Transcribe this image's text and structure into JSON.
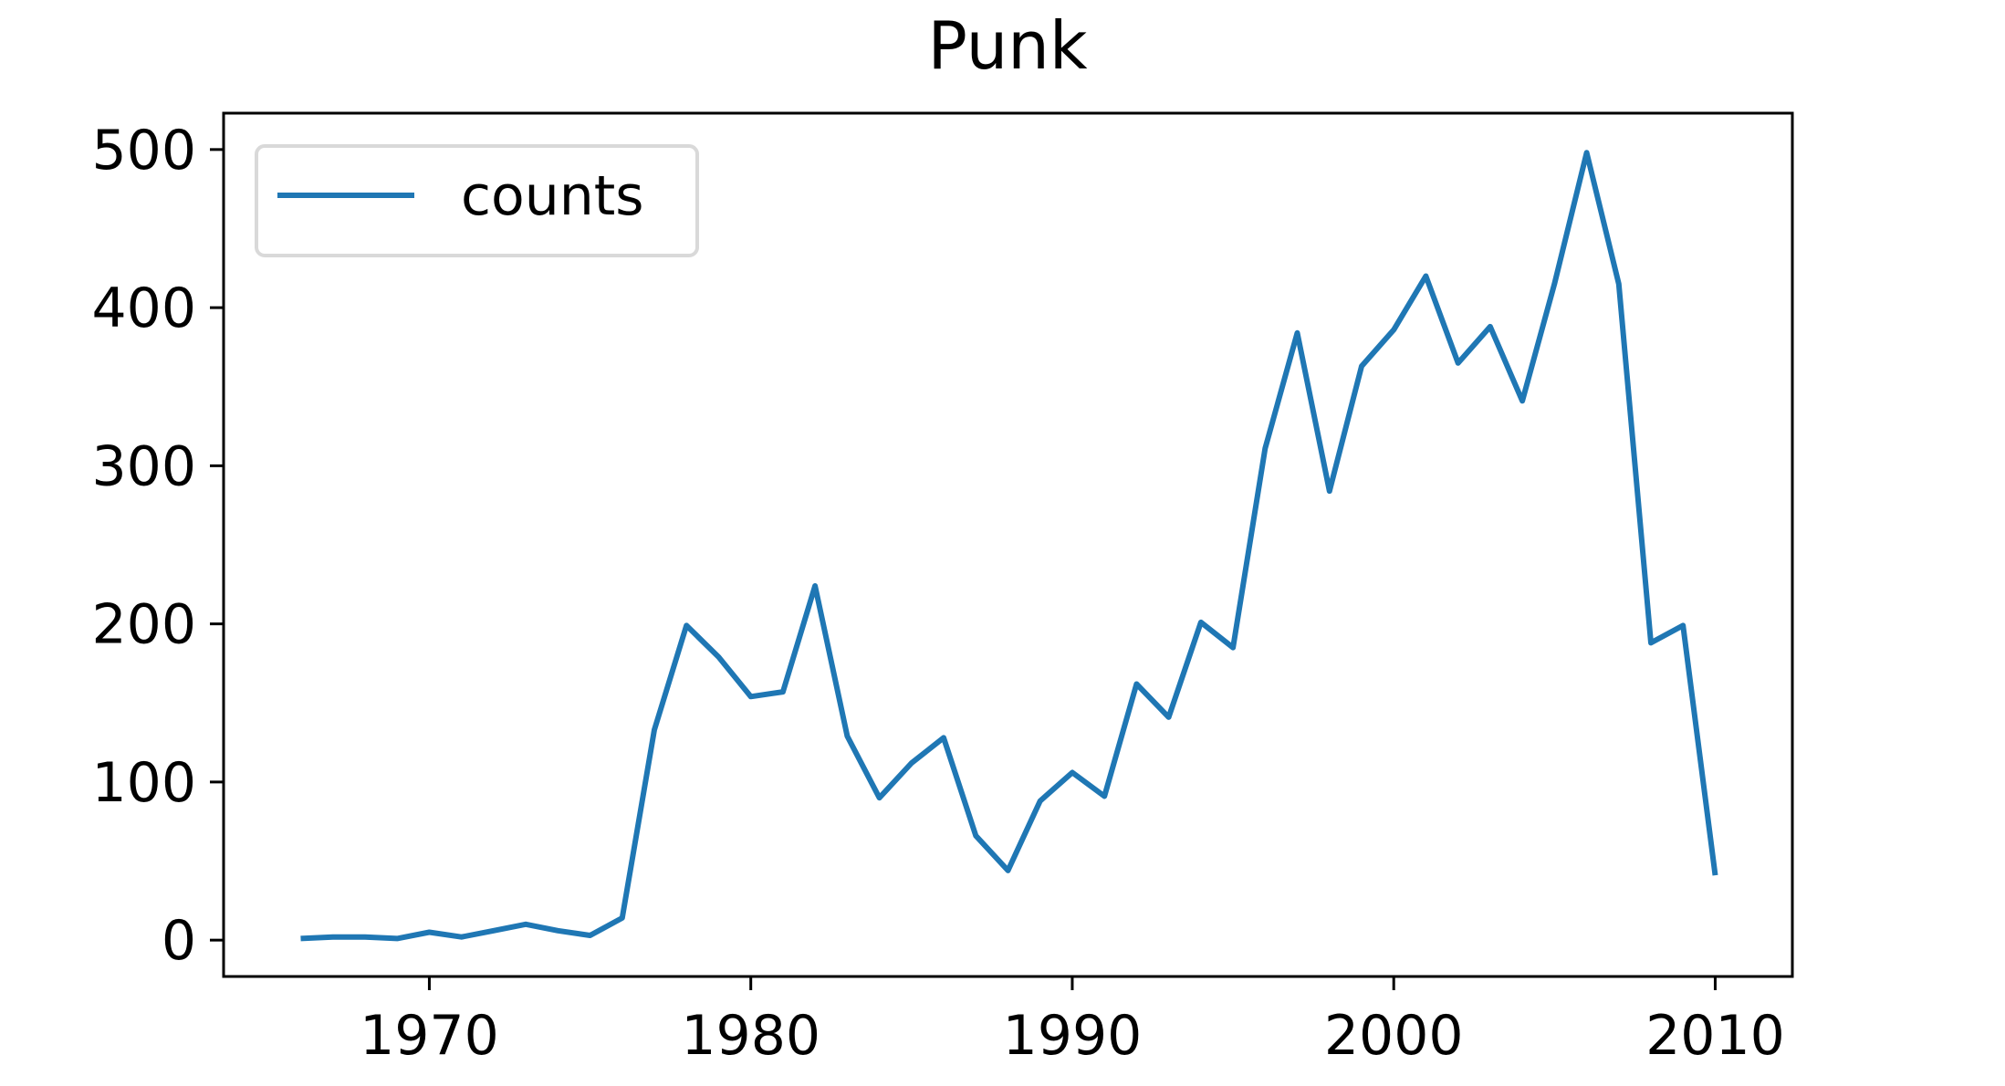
{
  "chart_data": {
    "type": "line",
    "title": "Punk",
    "xlabel": "",
    "ylabel": "",
    "xlim": [
      1963.6,
      2012.4
    ],
    "ylim": [
      -23,
      523
    ],
    "x_ticks": [
      1970,
      1980,
      1990,
      2000,
      2010
    ],
    "y_ticks": [
      0,
      100,
      200,
      300,
      400,
      500
    ],
    "grid": false,
    "legend_position": "upper-left",
    "series": [
      {
        "name": "counts",
        "color": "#1f77b4",
        "x": [
          1966,
          1967,
          1968,
          1969,
          1970,
          1971,
          1972,
          1973,
          1974,
          1975,
          1976,
          1977,
          1978,
          1979,
          1980,
          1981,
          1982,
          1983,
          1984,
          1985,
          1986,
          1987,
          1988,
          1989,
          1990,
          1991,
          1992,
          1993,
          1994,
          1995,
          1996,
          1997,
          1998,
          1999,
          2000,
          2001,
          2002,
          2003,
          2004,
          2005,
          2006,
          2007,
          2008,
          2009,
          2010
        ],
        "values": [
          1,
          2,
          2,
          1,
          5,
          2,
          6,
          10,
          6,
          3,
          14,
          133,
          199,
          179,
          154,
          157,
          224,
          129,
          90,
          112,
          128,
          66,
          44,
          88,
          106,
          91,
          162,
          141,
          201,
          185,
          311,
          384,
          284,
          363,
          386,
          420,
          365,
          388,
          341,
          415,
          498,
          415,
          188,
          199,
          41
        ]
      }
    ]
  }
}
